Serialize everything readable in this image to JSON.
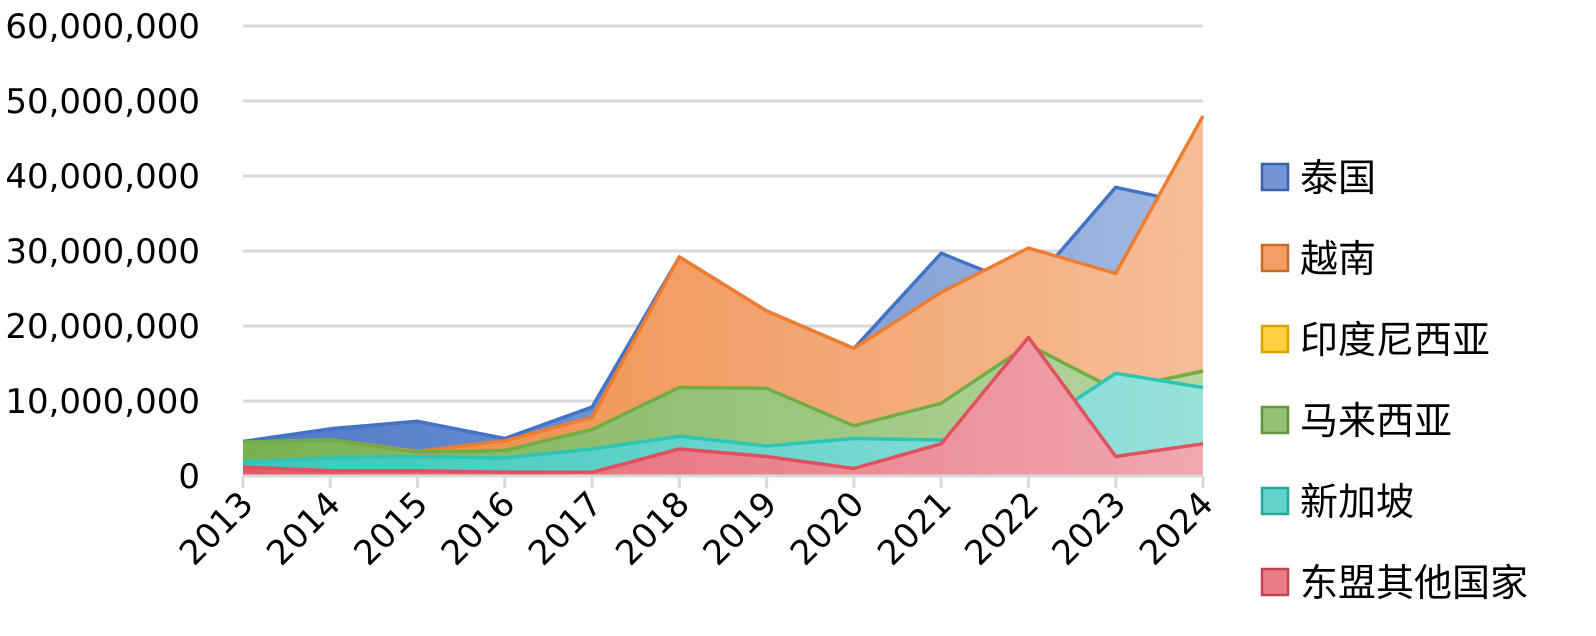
{
  "chart_data": {
    "type": "area",
    "title": "",
    "xlabel": "",
    "ylabel": "",
    "categories": [
      "2013",
      "2014",
      "2015",
      "2016",
      "2017",
      "2018",
      "2019",
      "2020",
      "2021",
      "2022",
      "2023",
      "2024"
    ],
    "ylim": [
      0,
      60000000
    ],
    "yticks": [
      0,
      10000000,
      20000000,
      30000000,
      40000000,
      50000000,
      60000000
    ],
    "ytick_labels": [
      "0",
      "10,000,000",
      "20,000,000",
      "30,000,000",
      "40,000,000",
      "50,000,000",
      "60,000,000"
    ],
    "grid": true,
    "legend_position": "right",
    "series": [
      {
        "name": "泰国",
        "color": "#4472C4",
        "values": [
          4600000,
          6300000,
          7300000,
          5000000,
          9200000,
          29200000,
          22000000,
          17000000,
          29700000,
          25000000,
          38500000,
          36000000
        ]
      },
      {
        "name": "越南",
        "color": "#ED7D31",
        "values": [
          4500000,
          4800000,
          3300000,
          4700000,
          7800000,
          29200000,
          22000000,
          17000000,
          24500000,
          30400000,
          27000000,
          48000000
        ]
      },
      {
        "name": "印度尼西亚",
        "color": "#FFC000",
        "values": [
          4500000,
          4800000,
          3200000,
          3400000,
          6200000,
          11800000,
          11700000,
          6700000,
          9700000,
          17500000,
          11500000,
          14000000
        ]
      },
      {
        "name": "马来西亚",
        "color": "#70AD47",
        "values": [
          4500000,
          4800000,
          3200000,
          3400000,
          6200000,
          11800000,
          11700000,
          6700000,
          9700000,
          17500000,
          11500000,
          14000000
        ]
      },
      {
        "name": "新加坡",
        "color": "#2EC4B6",
        "values": [
          1900000,
          2400000,
          2600000,
          2400000,
          3600000,
          5300000,
          4000000,
          5000000,
          4800000,
          6000000,
          13700000,
          11800000
        ]
      },
      {
        "name": "东盟其他国家",
        "color": "#E0505F",
        "values": [
          1200000,
          700000,
          700000,
          500000,
          500000,
          3600000,
          2600000,
          1000000,
          4300000,
          18500000,
          2600000,
          4300000
        ]
      }
    ]
  }
}
